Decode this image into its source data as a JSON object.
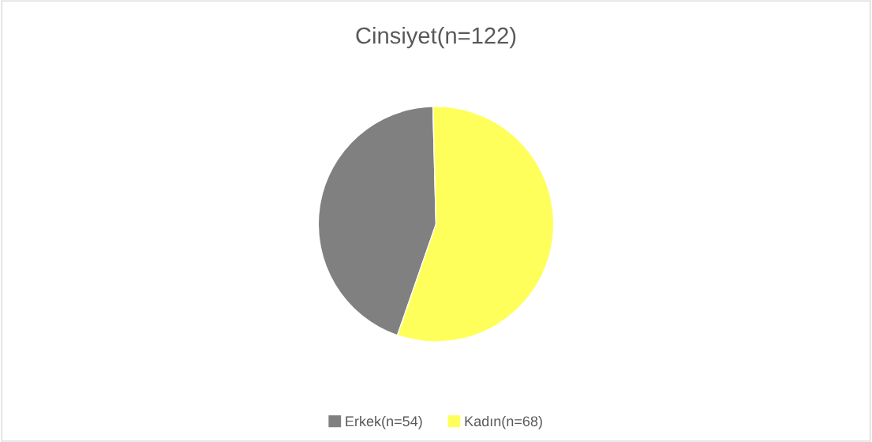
{
  "chart_data": {
    "type": "pie",
    "title": "Cinsiyet(n=122)",
    "categories": [
      "Erkek(n=54)",
      "Kadın(n=68)"
    ],
    "values": [
      54,
      68
    ],
    "colors": [
      "#808080",
      "#ffff5b"
    ],
    "legend": "bottom"
  }
}
